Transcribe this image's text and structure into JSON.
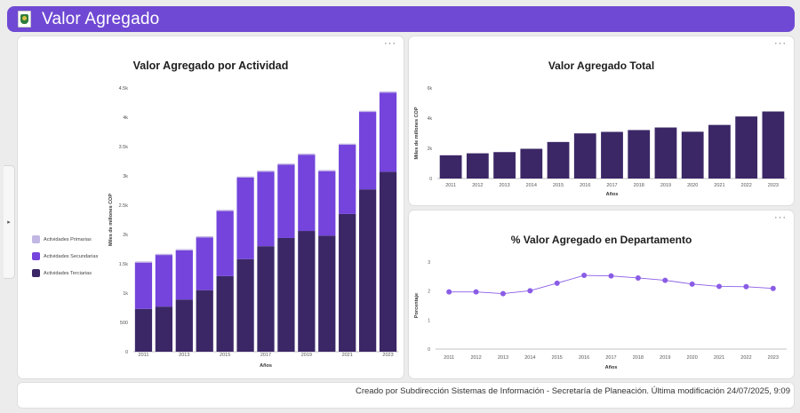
{
  "header": {
    "title": "Valor Agregado",
    "logo_icon": "department-shield-icon",
    "bg_color": "#6f49d3"
  },
  "side_tab": {
    "icon": "▸"
  },
  "menu_label": "···",
  "panels": {
    "activity": {
      "title": "Valor Agregado por Actividad"
    },
    "total": {
      "title": "Valor Agregado Total"
    },
    "percent": {
      "title": "% Valor Agregado en Departamento"
    }
  },
  "footer": {
    "text": "Creado por Subdirección Sistemas de Información - Secretaría de Planeación. Última modificación 24/07/2025, 9:09"
  },
  "chart_data": [
    {
      "type": "bar",
      "stacked": true,
      "title": "Valor Agregado por Actividad",
      "xlabel": "Años",
      "ylabel": "Miles de millones COP",
      "categories": [
        "2011",
        "2012",
        "2013",
        "2014",
        "2015",
        "2016",
        "2017",
        "2018",
        "2019",
        "2020",
        "2021",
        "2022",
        "2023"
      ],
      "x_tick_labels": [
        "2011",
        "2013",
        "2015",
        "2017",
        "2019",
        "2021",
        "2023"
      ],
      "y_ticks": [
        0,
        500,
        1000,
        1500,
        2000,
        2500,
        3000,
        3500,
        4000,
        4500
      ],
      "y_tick_labels": [
        "0",
        "500",
        "1k",
        "1.5k",
        "2k",
        "2.5k",
        "3k",
        "3.5k",
        "4k",
        "4.5k"
      ],
      "ylim": [
        0,
        4500
      ],
      "legend_position": "left",
      "series": [
        {
          "name": "Actividades Terciarias",
          "color": "#3b2766",
          "values": [
            730,
            770,
            890,
            1050,
            1290,
            1580,
            1800,
            1940,
            2060,
            1980,
            2350,
            2770,
            3070
          ]
        },
        {
          "name": "Actividades Secundarias",
          "color": "#7444dc",
          "values": [
            790,
            880,
            840,
            900,
            1110,
            1390,
            1270,
            1250,
            1300,
            1100,
            1180,
            1320,
            1350
          ]
        },
        {
          "name": "Actividades Primarias",
          "color": "#c2b6e3",
          "values": [
            20,
            20,
            20,
            20,
            20,
            20,
            20,
            20,
            20,
            20,
            20,
            20,
            20
          ]
        }
      ]
    },
    {
      "type": "bar",
      "title": "Valor Agregado Total",
      "xlabel": "Años",
      "ylabel": "Miles de millones COP",
      "categories": [
        "2011",
        "2012",
        "2013",
        "2014",
        "2015",
        "2016",
        "2017",
        "2018",
        "2019",
        "2020",
        "2021",
        "2022",
        "2023"
      ],
      "values": [
        1540,
        1670,
        1750,
        1970,
        2420,
        2990,
        3090,
        3210,
        3380,
        3100,
        3550,
        4110,
        4440
      ],
      "y_ticks": [
        0,
        2000,
        4000,
        6000
      ],
      "y_tick_labels": [
        "0",
        "2k",
        "4k",
        "6k"
      ],
      "ylim": [
        0,
        6000
      ],
      "color": "#3b2766"
    },
    {
      "type": "line",
      "title": "% Valor Agregado en Departamento",
      "xlabel": "Años",
      "ylabel": "Porcentaje",
      "categories": [
        "2011",
        "2012",
        "2013",
        "2014",
        "2015",
        "2016",
        "2017",
        "2018",
        "2019",
        "2020",
        "2021",
        "2022",
        "2023"
      ],
      "values": [
        1.97,
        1.97,
        1.91,
        2.01,
        2.27,
        2.54,
        2.52,
        2.45,
        2.37,
        2.24,
        2.16,
        2.15,
        2.09
      ],
      "y_ticks": [
        0,
        1,
        2,
        3
      ],
      "y_tick_labels": [
        "0",
        "1",
        "2",
        "3"
      ],
      "ylim": [
        0,
        3
      ],
      "color": "#8a5ce6"
    }
  ]
}
